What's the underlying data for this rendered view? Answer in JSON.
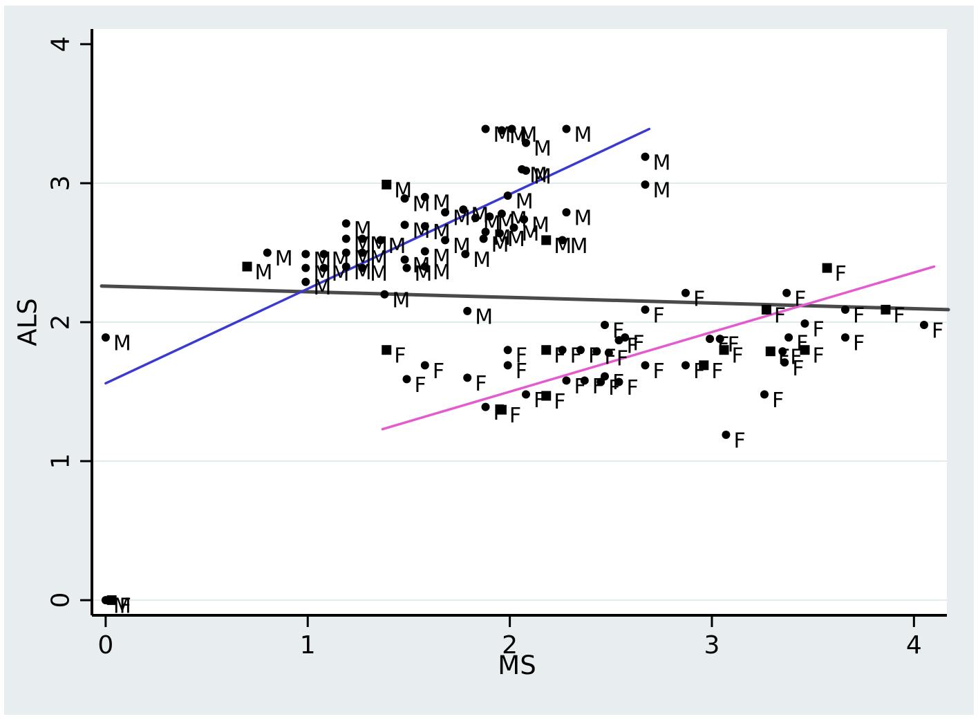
{
  "figure": {
    "background_color": "#e8eef0",
    "plot_background": "#ffffff",
    "grid_color": "#dfecee",
    "axis_color": "#000000",
    "text_color": "#000000"
  },
  "chart_data": {
    "type": "scatter",
    "title": "",
    "xlabel": "MS",
    "ylabel": "ALS",
    "xlim": [
      -0.068,
      4.163
    ],
    "ylim": [
      -0.109,
      4.109
    ],
    "xticks": [
      0,
      1,
      2,
      3,
      4
    ],
    "yticks": [
      0,
      1,
      2,
      3,
      4
    ],
    "gridlines_y": [
      0,
      1,
      2,
      3
    ],
    "grid": true,
    "legend_position": "none",
    "marker_legend": "points labeled M = male, F = female; circle and square markers, all black",
    "series": [
      {
        "name": "male",
        "label": "M",
        "marker_color": "#000000",
        "points": [
          [
            0,
            0,
            "c"
          ],
          [
            0,
            1.89,
            "c"
          ],
          [
            0.7,
            2.4,
            "s"
          ],
          [
            0.8,
            2.5,
            "c"
          ],
          [
            0.99,
            2.49,
            "c"
          ],
          [
            0.99,
            2.39,
            "c"
          ],
          [
            0.99,
            2.29,
            "c"
          ],
          [
            1.08,
            2.49,
            "c"
          ],
          [
            1.08,
            2.39,
            "c"
          ],
          [
            1.19,
            2.71,
            "c"
          ],
          [
            1.19,
            2.6,
            "c"
          ],
          [
            1.19,
            2.5,
            "c"
          ],
          [
            1.19,
            2.4,
            "c"
          ],
          [
            1.27,
            2.6,
            "c"
          ],
          [
            1.27,
            2.5,
            "c"
          ],
          [
            1.27,
            2.39,
            "c"
          ],
          [
            1.36,
            2.59,
            "c"
          ],
          [
            1.38,
            2.2,
            "c"
          ],
          [
            1.39,
            2.99,
            "s"
          ],
          [
            1.48,
            2.89,
            "c"
          ],
          [
            1.58,
            2.9,
            "c"
          ],
          [
            1.48,
            2.7,
            "c"
          ],
          [
            1.58,
            2.69,
            "c"
          ],
          [
            1.48,
            2.45,
            "c"
          ],
          [
            1.58,
            2.51,
            "c"
          ],
          [
            1.49,
            2.39,
            "c"
          ],
          [
            1.58,
            2.4,
            "c"
          ],
          [
            1.68,
            2.79,
            "c"
          ],
          [
            1.68,
            2.59,
            "c"
          ],
          [
            1.78,
            2.49,
            "c"
          ],
          [
            1.77,
            2.81,
            "c"
          ],
          [
            1.79,
            2.08,
            "c"
          ],
          [
            1.83,
            2.75,
            "c"
          ],
          [
            1.9,
            2.76,
            "c"
          ],
          [
            1.96,
            2.78,
            "c"
          ],
          [
            1.88,
            2.65,
            "c"
          ],
          [
            1.95,
            2.64,
            "c"
          ],
          [
            1.87,
            2.6,
            "c"
          ],
          [
            2.02,
            2.68,
            "c"
          ],
          [
            2.07,
            2.74,
            "c"
          ],
          [
            1.99,
            2.91,
            "c"
          ],
          [
            2.06,
            3.1,
            "c"
          ],
          [
            1.88,
            3.39,
            "c"
          ],
          [
            1.96,
            3.38,
            "c"
          ],
          [
            2.01,
            3.39,
            "c"
          ],
          [
            2.08,
            3.29,
            "c"
          ],
          [
            2.28,
            3.39,
            "c"
          ],
          [
            2.08,
            3.09,
            "c"
          ],
          [
            2.28,
            2.79,
            "c"
          ],
          [
            2.18,
            2.59,
            "s"
          ],
          [
            2.26,
            2.59,
            "c"
          ],
          [
            2.67,
            3.19,
            "c"
          ],
          [
            2.67,
            2.99,
            "c"
          ]
        ]
      },
      {
        "name": "female",
        "label": "F",
        "marker_color": "#000000",
        "points": [
          [
            0.03,
            0,
            "s"
          ],
          [
            1.39,
            1.8,
            "s"
          ],
          [
            1.49,
            1.59,
            "c"
          ],
          [
            1.58,
            1.69,
            "c"
          ],
          [
            1.79,
            1.6,
            "c"
          ],
          [
            1.88,
            1.39,
            "c"
          ],
          [
            1.96,
            1.37,
            "s"
          ],
          [
            1.99,
            1.8,
            "c"
          ],
          [
            1.99,
            1.69,
            "c"
          ],
          [
            2.08,
            1.48,
            "c"
          ],
          [
            2.18,
            1.47,
            "s"
          ],
          [
            2.18,
            1.8,
            "s"
          ],
          [
            2.26,
            1.8,
            "c"
          ],
          [
            2.35,
            1.8,
            "c"
          ],
          [
            2.43,
            1.79,
            "c"
          ],
          [
            2.49,
            1.78,
            "c"
          ],
          [
            2.28,
            1.58,
            "c"
          ],
          [
            2.37,
            1.58,
            "c"
          ],
          [
            2.45,
            1.57,
            "c"
          ],
          [
            2.54,
            1.57,
            "c"
          ],
          [
            2.54,
            1.87,
            "c"
          ],
          [
            2.47,
            1.98,
            "c"
          ],
          [
            2.47,
            1.61,
            "c"
          ],
          [
            2.57,
            1.89,
            "c"
          ],
          [
            2.67,
            2.09,
            "c"
          ],
          [
            2.67,
            1.69,
            "c"
          ],
          [
            2.87,
            2.21,
            "c"
          ],
          [
            2.87,
            1.69,
            "c"
          ],
          [
            2.96,
            1.69,
            "s"
          ],
          [
            2.99,
            1.88,
            "c"
          ],
          [
            3.04,
            1.88,
            "c"
          ],
          [
            3.06,
            1.8,
            "s"
          ],
          [
            3.07,
            1.19,
            "c"
          ],
          [
            3.26,
            1.48,
            "c"
          ],
          [
            3.27,
            2.09,
            "s"
          ],
          [
            3.29,
            1.79,
            "s"
          ],
          [
            3.35,
            1.79,
            "c"
          ],
          [
            3.38,
            1.89,
            "c"
          ],
          [
            3.37,
            2.21,
            "c"
          ],
          [
            3.46,
            1.99,
            "c"
          ],
          [
            3.36,
            1.71,
            "c"
          ],
          [
            3.46,
            1.8,
            "s"
          ],
          [
            3.57,
            2.39,
            "s"
          ],
          [
            3.66,
            2.09,
            "c"
          ],
          [
            3.66,
            1.89,
            "c"
          ],
          [
            3.86,
            2.09,
            "s"
          ],
          [
            4.05,
            1.98,
            "c"
          ]
        ]
      }
    ],
    "fit_lines": [
      {
        "name": "fit-line-combined",
        "color": "#4a4a4a",
        "width": 5,
        "x0": -0.02,
        "y0": 2.26,
        "x1": 4.17,
        "y1": 2.09
      },
      {
        "name": "fit-line-male",
        "color": "#3a3ad0",
        "width": 3.5,
        "x0": 0.0,
        "y0": 1.56,
        "x1": 2.69,
        "y1": 3.39
      },
      {
        "name": "fit-line-female",
        "color": "#e45bd0",
        "width": 3.5,
        "x0": 1.37,
        "y0": 1.23,
        "x1": 4.1,
        "y1": 2.4
      }
    ]
  }
}
